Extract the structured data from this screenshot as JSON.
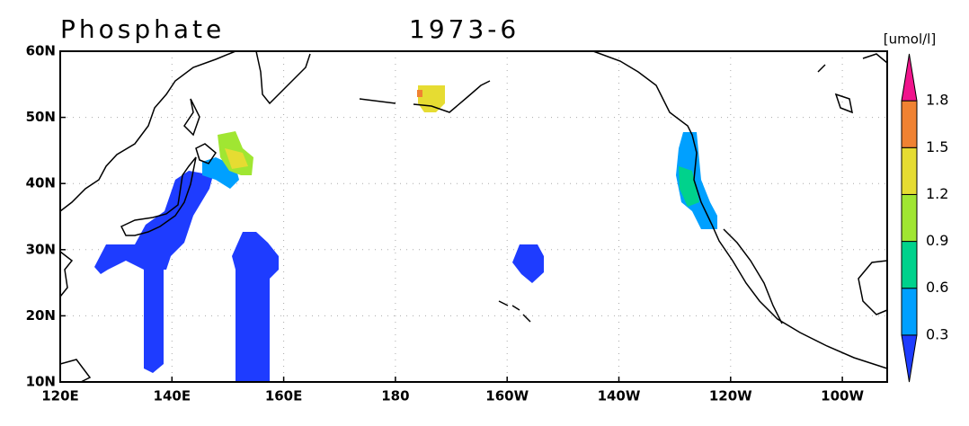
{
  "header": {
    "title": "Phosphate",
    "period": "1973-6",
    "unit": "[umol/l]"
  },
  "axes": {
    "x_labels": [
      "120E",
      "140E",
      "160E",
      "180",
      "160W",
      "140W",
      "120W",
      "100W"
    ],
    "y_labels": [
      "10N",
      "20N",
      "30N",
      "40N",
      "50N",
      "60N"
    ]
  },
  "colorbar": {
    "levels": [
      0.3,
      0.6,
      0.9,
      1.2,
      1.5,
      1.8
    ],
    "colors": [
      "#1e3cff",
      "#00a0ff",
      "#00d28c",
      "#a0e632",
      "#e6dc32",
      "#f08232",
      "#f0148c"
    ]
  }
}
